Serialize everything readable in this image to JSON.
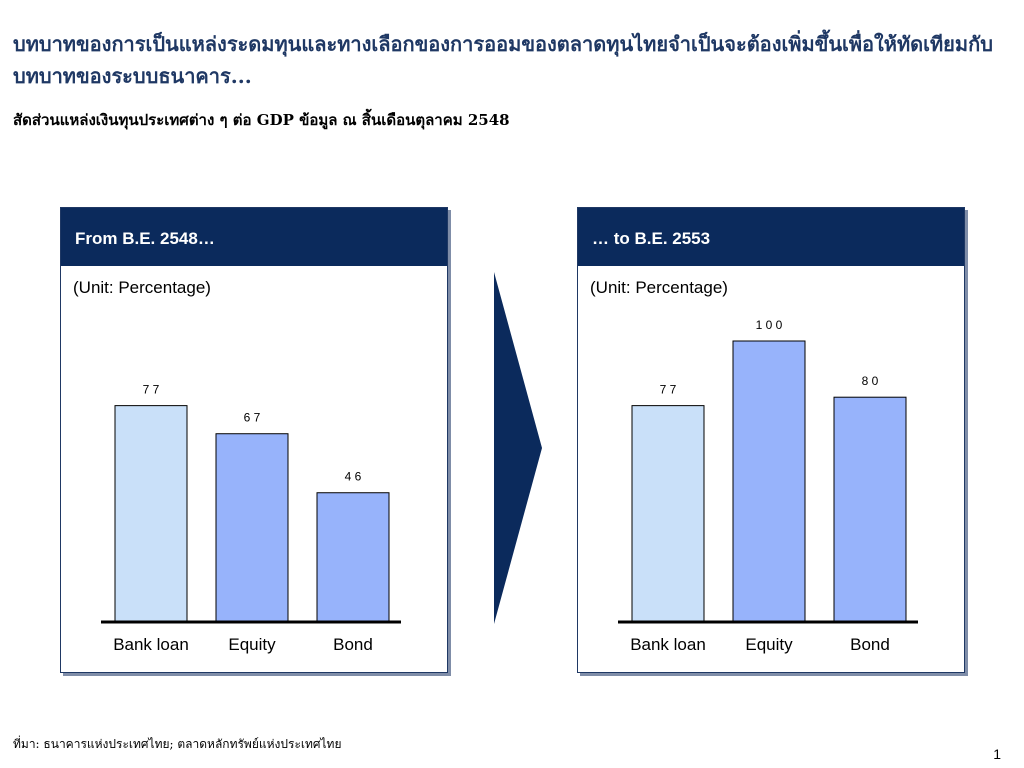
{
  "slide": {
    "title": "บทบาทของการเป็นแหล่งระดมทุนและทางเลือกของการออมของตลาดทุนไทยจำเป็นจะต้องเพิ่มขึ้นเพื่อให้ทัดเทียมกับบทบาทของระบบธนาคาร...",
    "subtitle": "สัดส่วนแหล่งเงินทุนประเทศต่าง ๆ ต่อ GDP  ข้อมูล ณ สิ้นเดือนตุลาคม 2548",
    "source": "ที่มา:  ธนาคารแห่งประเทศไทย; ตลาดหลักทรัพย์แห่งประเทศไทย",
    "page_number": "1"
  },
  "colors": {
    "header_bg": "#0b2a5c",
    "title_text": "#1f3864",
    "bank_loan_bar": "#c9e0f9",
    "equity_bar": "#97b3fb",
    "bond_bar": "#97b3fb",
    "arrow": "#0b2a5c"
  },
  "chart_data": [
    {
      "type": "bar",
      "title": "From B.E. 2548…",
      "unit_label": "(Unit: Percentage)",
      "categories": [
        "Bank loan",
        "Equity",
        "Bond"
      ],
      "values": [
        77,
        67,
        46
      ],
      "value_labels": [
        "7 7",
        "6 7",
        "4 6"
      ],
      "ylim": [
        0,
        100
      ]
    },
    {
      "type": "bar",
      "title": "… to B.E. 2553",
      "unit_label": "(Unit: Percentage)",
      "categories": [
        "Bank loan",
        "Equity",
        "Bond"
      ],
      "values": [
        77,
        100,
        80
      ],
      "value_labels": [
        "7 7",
        "1 0 0",
        "8 0"
      ],
      "ylim": [
        0,
        100
      ]
    }
  ]
}
